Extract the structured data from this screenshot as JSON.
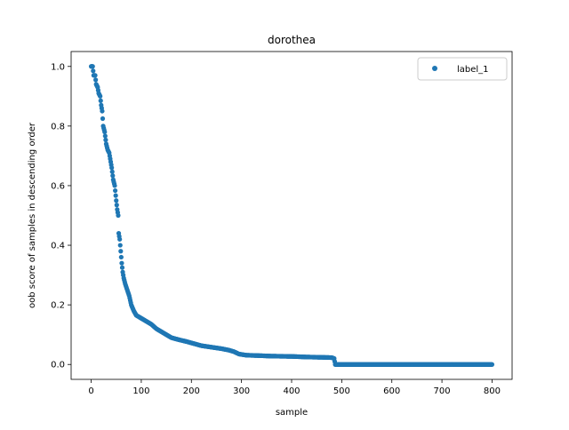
{
  "chart_data": {
    "type": "scatter",
    "title": "dorothea",
    "xlabel": "sample",
    "ylabel": "oob score of samples in descending order",
    "xlim": [
      -40,
      840
    ],
    "ylim": [
      -0.05,
      1.05
    ],
    "xticks": [
      0,
      100,
      200,
      300,
      400,
      500,
      600,
      700,
      800
    ],
    "yticks": [
      0.0,
      0.2,
      0.4,
      0.6,
      0.8,
      1.0
    ],
    "xtick_labels": [
      "0",
      "100",
      "200",
      "300",
      "400",
      "500",
      "600",
      "700",
      "800"
    ],
    "ytick_labels": [
      "0.0",
      "0.2",
      "0.4",
      "0.6",
      "0.8",
      "1.0"
    ],
    "grid": false,
    "legend_position": "top-right",
    "series": [
      {
        "name": "label_1",
        "color": "#1f77b4",
        "marker": "circle",
        "curve": [
          [
            0,
            1.0
          ],
          [
            3,
            1.0
          ],
          [
            5,
            0.97
          ],
          [
            8,
            0.97
          ],
          [
            10,
            0.94
          ],
          [
            13,
            0.93
          ],
          [
            15,
            0.91
          ],
          [
            18,
            0.9
          ],
          [
            20,
            0.87
          ],
          [
            22,
            0.85
          ],
          [
            24,
            0.8
          ],
          [
            27,
            0.78
          ],
          [
            30,
            0.74
          ],
          [
            33,
            0.72
          ],
          [
            36,
            0.71
          ],
          [
            38,
            0.69
          ],
          [
            41,
            0.66
          ],
          [
            44,
            0.62
          ],
          [
            47,
            0.6
          ],
          [
            50,
            0.55
          ],
          [
            52,
            0.52
          ],
          [
            54,
            0.5
          ],
          [
            55,
            0.44
          ],
          [
            57,
            0.42
          ],
          [
            59,
            0.38
          ],
          [
            61,
            0.34
          ],
          [
            63,
            0.31
          ],
          [
            65,
            0.29
          ],
          [
            68,
            0.27
          ],
          [
            72,
            0.25
          ],
          [
            76,
            0.23
          ],
          [
            80,
            0.2
          ],
          [
            85,
            0.18
          ],
          [
            90,
            0.165
          ],
          [
            100,
            0.155
          ],
          [
            110,
            0.145
          ],
          [
            120,
            0.135
          ],
          [
            130,
            0.12
          ],
          [
            140,
            0.11
          ],
          [
            150,
            0.1
          ],
          [
            160,
            0.09
          ],
          [
            175,
            0.083
          ],
          [
            190,
            0.077
          ],
          [
            205,
            0.07
          ],
          [
            220,
            0.063
          ],
          [
            240,
            0.058
          ],
          [
            260,
            0.053
          ],
          [
            275,
            0.048
          ],
          [
            285,
            0.043
          ],
          [
            295,
            0.035
          ],
          [
            310,
            0.031
          ],
          [
            330,
            0.03
          ],
          [
            360,
            0.028
          ],
          [
            400,
            0.027
          ],
          [
            430,
            0.025
          ],
          [
            460,
            0.024
          ],
          [
            480,
            0.023
          ],
          [
            485,
            0.02
          ],
          [
            487,
            0.0
          ],
          [
            800,
            0.0
          ]
        ]
      }
    ]
  }
}
